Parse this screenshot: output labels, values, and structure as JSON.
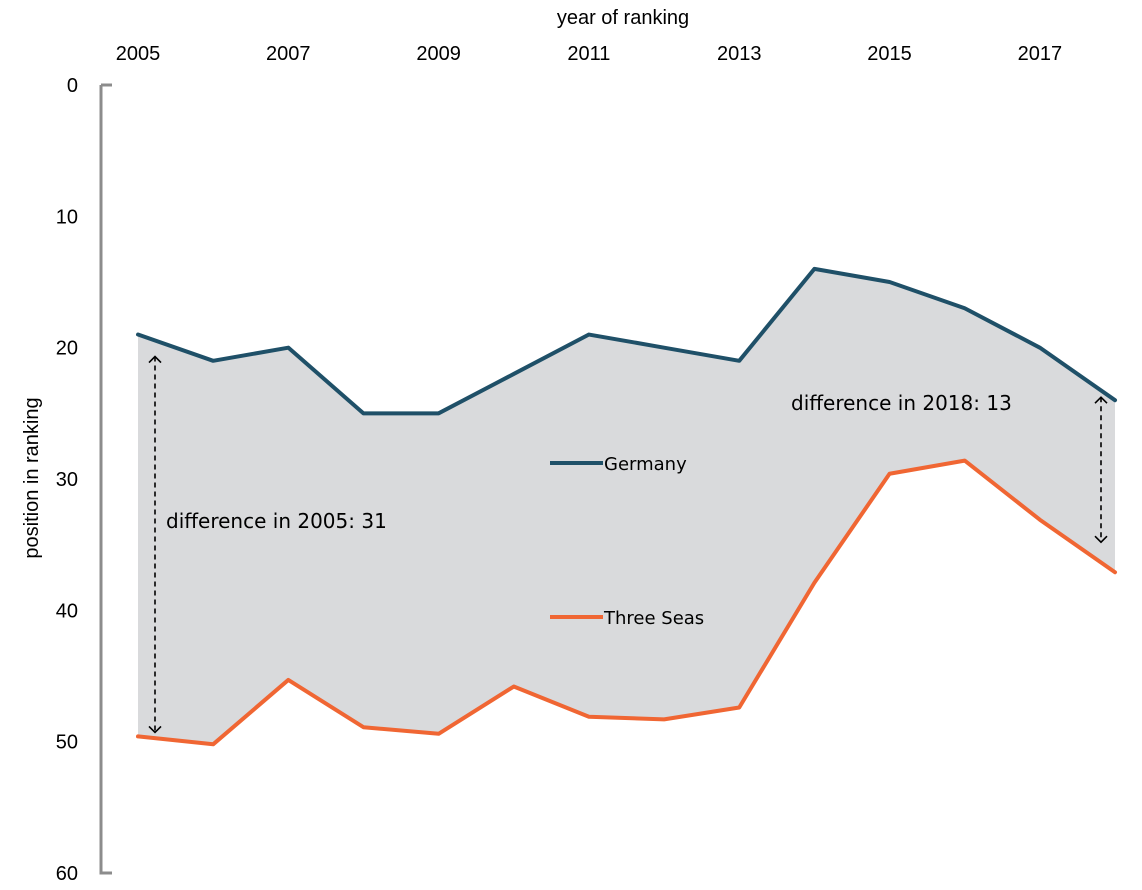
{
  "chart_data": {
    "type": "area",
    "title": "",
    "xlabel": "year of ranking",
    "ylabel": "position in ranking",
    "x": [
      2005,
      2006,
      2007,
      2008,
      2009,
      2010,
      2011,
      2012,
      2013,
      2014,
      2015,
      2016,
      2017,
      2018
    ],
    "x_ticks": [
      2005,
      2007,
      2009,
      2011,
      2013,
      2015,
      2017
    ],
    "y_ticks": [
      0,
      10,
      20,
      30,
      40,
      50,
      60
    ],
    "ylim": [
      0,
      60
    ],
    "y_inverted": true,
    "x_axis_position": "top",
    "grid": false,
    "series": [
      {
        "name": "Germany",
        "color": "#1f5068",
        "values": [
          19,
          21,
          20,
          25,
          25,
          22,
          19,
          20,
          21,
          14,
          15,
          17,
          20,
          24
        ]
      },
      {
        "name": "Three Seas",
        "color": "#f06633",
        "values": [
          49.6,
          50.2,
          45.3,
          48.9,
          49.4,
          45.8,
          48.1,
          48.3,
          47.4,
          37.9,
          29.6,
          28.6,
          33.1,
          37.1
        ]
      }
    ],
    "fill_between_color": "#d9dadc",
    "annotations": [
      {
        "text": "difference in 2005:  31",
        "x": 2005
      },
      {
        "text": "difference in 2018:  13",
        "x": 2018
      }
    ],
    "legend_placement": "center"
  }
}
